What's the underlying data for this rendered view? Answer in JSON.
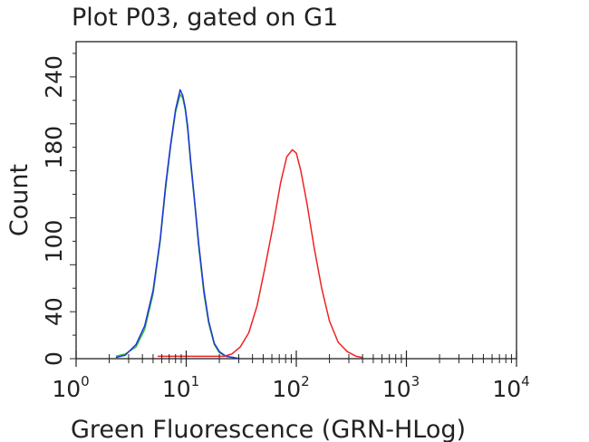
{
  "chart_data": {
    "type": "line",
    "title": "Plot P03, gated on G1",
    "xlabel": "Green Fluorescence (GRN-HLog)",
    "ylabel": "Count",
    "xscale": "log",
    "xlim": [
      1,
      10000
    ],
    "ylim": [
      0,
      270
    ],
    "x_ticks": [
      {
        "base": "10",
        "exp": "0"
      },
      {
        "base": "10",
        "exp": "1"
      },
      {
        "base": "10",
        "exp": "2"
      },
      {
        "base": "10",
        "exp": "3"
      },
      {
        "base": "10",
        "exp": "4"
      }
    ],
    "y_ticks": [
      "0",
      "40",
      "100",
      "180",
      "240"
    ],
    "y_tick_values": [
      0,
      40,
      100,
      180,
      240
    ],
    "grid": false,
    "legend": "none",
    "series": [
      {
        "color": "#33bb33",
        "x": [
          2.3,
          2.8,
          3.5,
          4.2,
          5.0,
          5.8,
          6.5,
          7.2,
          8.0,
          8.8,
          9.3,
          9.8,
          10.3,
          11.0,
          12.0,
          13.0,
          14.5,
          16.0,
          18.0,
          20.0,
          23.0,
          27.0
        ],
        "y": [
          2,
          4,
          10,
          25,
          55,
          100,
          145,
          180,
          210,
          225,
          222,
          212,
          195,
          165,
          130,
          95,
          55,
          30,
          12,
          5,
          2,
          1
        ]
      },
      {
        "color": "#2233dd",
        "x": [
          2.3,
          2.8,
          3.5,
          4.2,
          5.0,
          5.8,
          6.5,
          7.2,
          8.0,
          8.8,
          9.3,
          9.8,
          10.3,
          11.0,
          12.0,
          13.0,
          14.5,
          16.0,
          18.0,
          20.0,
          23.0,
          27.0,
          31.0
        ],
        "y": [
          1,
          3,
          12,
          28,
          58,
          102,
          148,
          182,
          212,
          229,
          224,
          214,
          198,
          168,
          132,
          98,
          58,
          32,
          13,
          6,
          2,
          1,
          0
        ]
      },
      {
        "color": "#ee2222",
        "x": [
          5.5,
          8.0,
          12.0,
          18.0,
          22.0,
          26.0,
          31.0,
          37.0,
          44.0,
          52.0,
          62.0,
          72.0,
          82.0,
          92.0,
          100.0,
          110.0,
          125.0,
          145.0,
          170.0,
          200.0,
          240.0,
          290.0,
          350.0,
          400.0
        ],
        "y": [
          2,
          2,
          2,
          2,
          2,
          4,
          10,
          22,
          45,
          78,
          115,
          150,
          172,
          178,
          175,
          160,
          132,
          95,
          60,
          32,
          14,
          6,
          2,
          1
        ]
      }
    ]
  }
}
